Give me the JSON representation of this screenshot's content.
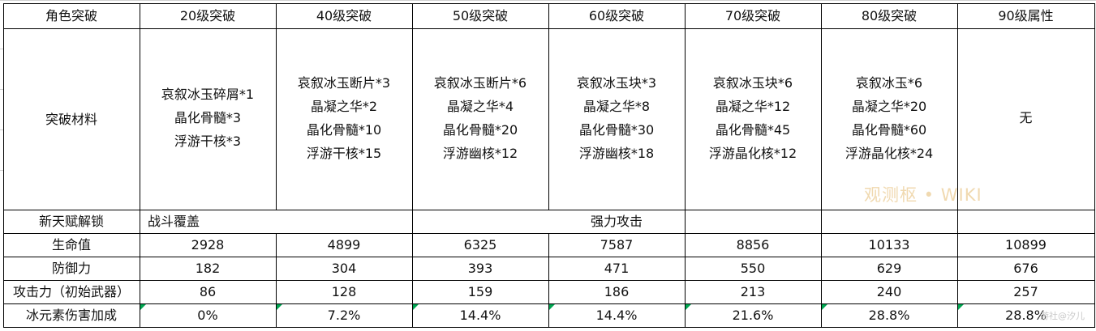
{
  "table": {
    "headers": [
      "角色突破",
      "20级突破",
      "40级突破",
      "50级突破",
      "60级突破",
      "70级突破",
      "80级突破",
      "90级属性"
    ],
    "materials_label": "突破材料",
    "materials": [
      [
        "哀叙冰玉碎屑*1",
        "晶化骨髓*3",
        "浮游干核*3"
      ],
      [
        "哀叙冰玉断片*3",
        "晶凝之华*2",
        "晶化骨髓*10",
        "浮游干核*15"
      ],
      [
        "哀叙冰玉断片*6",
        "晶凝之华*4",
        "晶化骨髓*20",
        "浮游幽核*12"
      ],
      [
        "哀叙冰玉块*3",
        "晶凝之华*8",
        "晶化骨髓*30",
        "浮游幽核*18"
      ],
      [
        "哀叙冰玉块*6",
        "晶凝之华*12",
        "晶化骨髓*45",
        "浮游晶化核*12"
      ],
      [
        "哀叙冰玉*6",
        "晶凝之华*20",
        "晶化骨髓*60",
        "浮游晶化核*24"
      ],
      [
        "无"
      ]
    ],
    "talent_label": "新天赋解锁",
    "talent_values": [
      "战斗覆盖",
      "强力攻击"
    ],
    "stat_rows": [
      {
        "label": "生命值",
        "values": [
          "2928",
          "4899",
          "6325",
          "7587",
          "8856",
          "10133",
          "10899"
        ]
      },
      {
        "label": "防御力",
        "values": [
          "182",
          "304",
          "393",
          "471",
          "550",
          "629",
          "676"
        ]
      },
      {
        "label": "攻击力（初始武器）",
        "values": [
          "86",
          "128",
          "159",
          "186",
          "213",
          "240",
          "257"
        ]
      },
      {
        "label": "冰元素伤害加成",
        "values": [
          "0%",
          "7.2%",
          "14.4%",
          "14.4%",
          "21.6%",
          "28.8%",
          "28.8%"
        ]
      }
    ]
  },
  "watermark": "观测枢 • WIKI",
  "source_mark": "游社@汐儿",
  "colors": {
    "grid": "#000000",
    "light_grid": "#d0d0d0",
    "comment_marker": "#00a651",
    "watermark": "#f0d9b0"
  }
}
